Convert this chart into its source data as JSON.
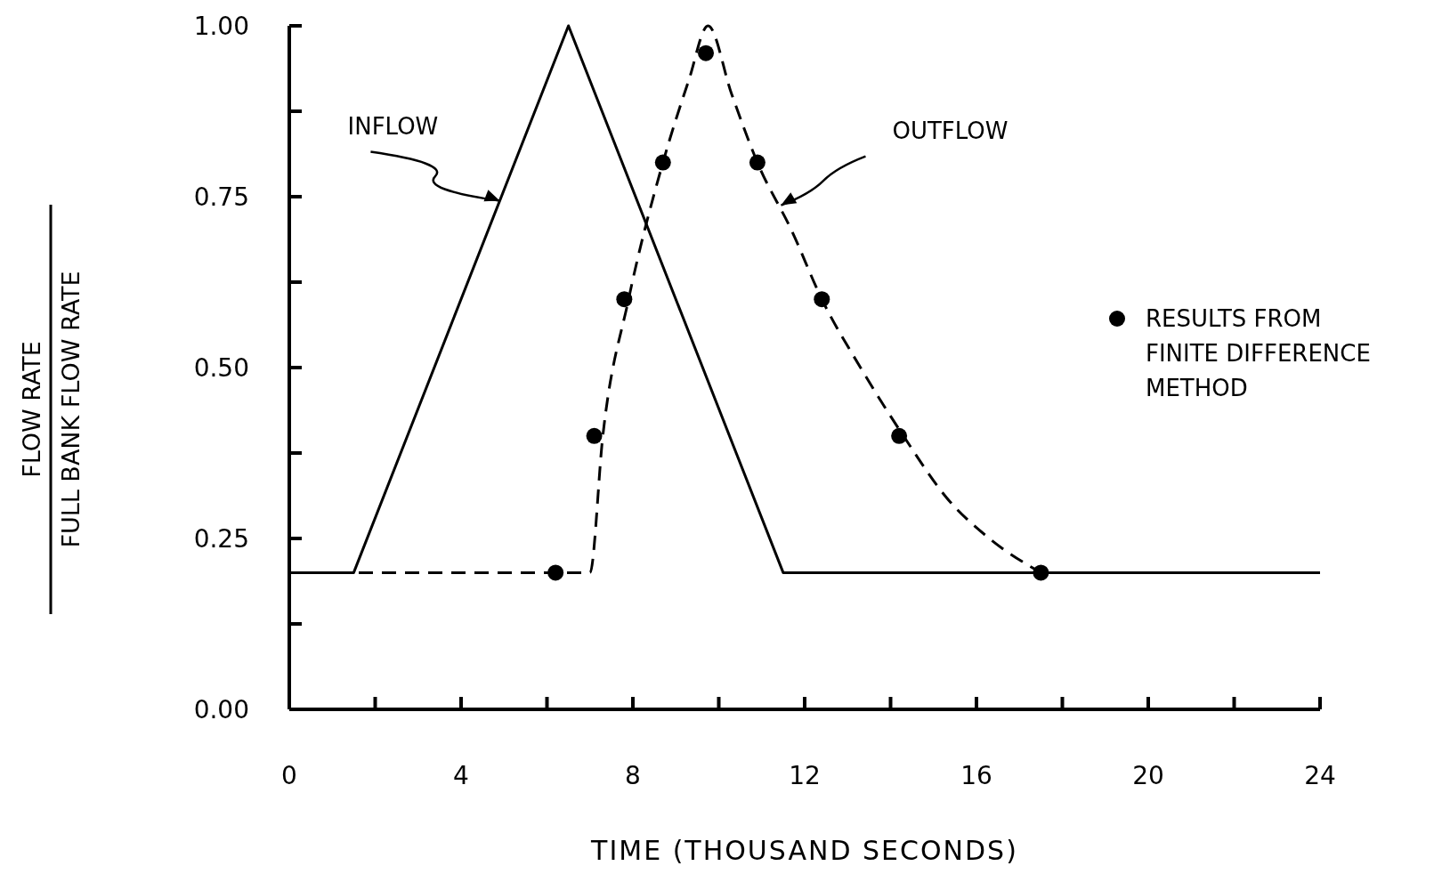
{
  "chart_data": {
    "type": "line",
    "xlabel": "TIME  (THOUSAND SECONDS)",
    "ylabel": "FLOW RATE\nFULL BANK FLOW RATE",
    "xlim": [
      0,
      24
    ],
    "ylim": [
      0,
      1
    ],
    "xticks": [
      0,
      {
        "value": 2,
        "label": null
      },
      4,
      {
        "value": 6,
        "label": null
      },
      8,
      {
        "value": 10,
        "label": null
      },
      12,
      {
        "value": 14,
        "label": null
      },
      16,
      {
        "value": 18,
        "label": null
      },
      20,
      {
        "value": 22,
        "label": null
      },
      24
    ],
    "yticks": [
      {
        "value": 0,
        "label": "0.00"
      },
      {
        "value": 0.125,
        "label": null
      },
      0.25,
      {
        "value": 0.375,
        "label": null
      },
      {
        "value": 0.5,
        "label": "0.50"
      },
      {
        "value": 0.625,
        "label": null
      },
      0.75,
      {
        "value": 0.875,
        "label": null
      },
      {
        "value": 1,
        "label": "1.00"
      }
    ],
    "series": [
      {
        "color": "#000000",
        "line_style": "solid",
        "x": [
          0,
          1.5,
          6.5,
          11.5,
          24
        ],
        "values": [
          0.2,
          0.2,
          1.0,
          0.2,
          0.2
        ]
      },
      {
        "color": "#000000",
        "line_style": "dashed",
        "x": [
          0,
          7.0,
          7.3,
          7.9,
          8.7,
          9.3,
          9.75,
          10.3,
          10.9,
          11.7,
          12.4,
          13.3,
          14.3,
          15.3,
          16.3,
          17.5
        ],
        "values": [
          0.2,
          0.2,
          0.4,
          0.6,
          0.8,
          0.92,
          1.0,
          0.9,
          0.8,
          0.7,
          0.6,
          0.5,
          0.4,
          0.31,
          0.25,
          0.2
        ]
      },
      {
        "type": "scatter",
        "name": "RESULTS FROM FINITE DIFFERENCE METHOD",
        "color": "#000000",
        "marker": "circle",
        "x": [
          6.2,
          7.1,
          7.8,
          8.7,
          9.7,
          10.9,
          12.4,
          14.2,
          17.5
        ],
        "values": [
          0.2,
          0.4,
          0.6,
          0.8,
          0.96,
          0.8,
          0.6,
          0.4,
          0.2
        ]
      }
    ],
    "annotations": [
      {
        "text": "INFLOW",
        "x": 4.9,
        "y": 0.744
      },
      {
        "text": "OUTFLOW",
        "x": 11.45,
        "y": 0.7375
      }
    ],
    "legend": "right",
    "grid": false
  }
}
